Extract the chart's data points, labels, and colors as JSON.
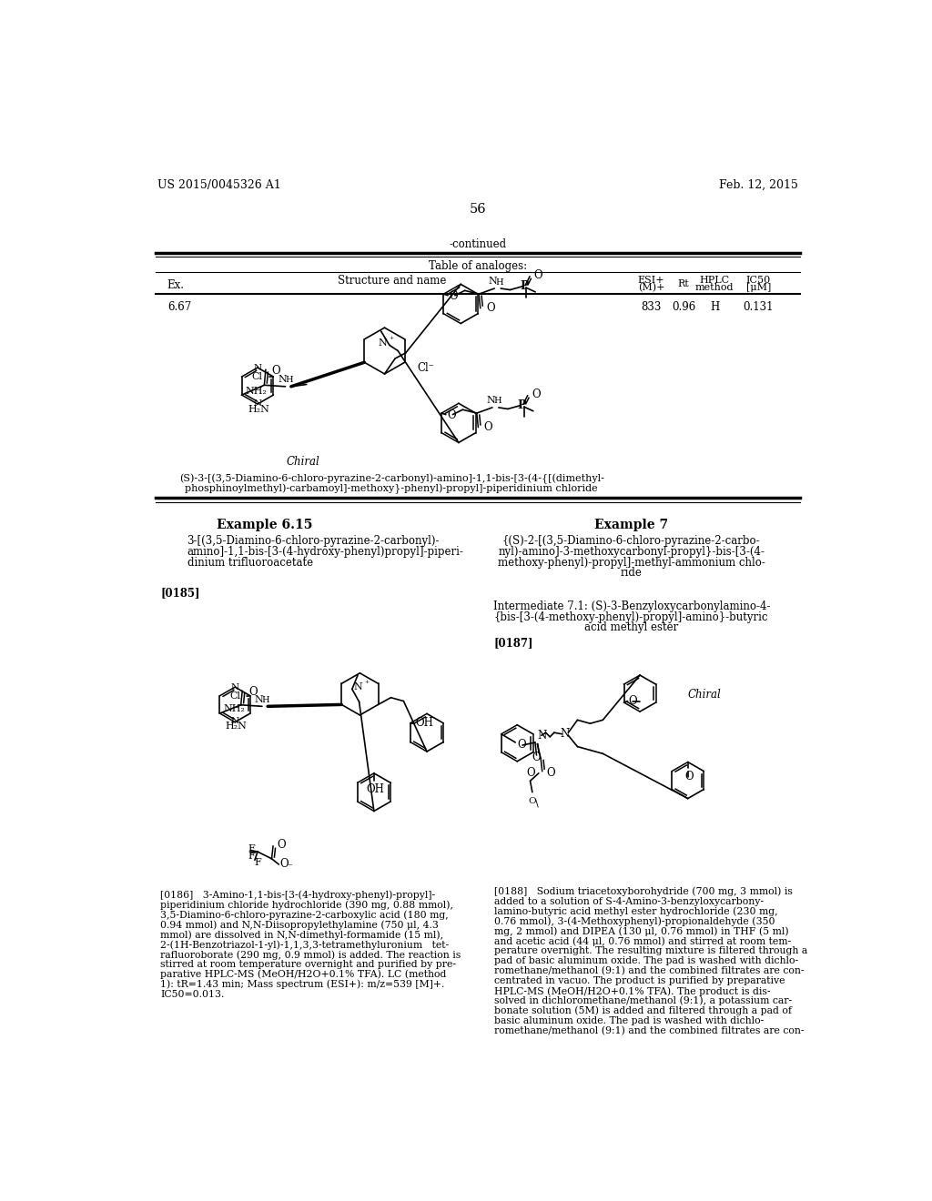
{
  "bg_color": "#ffffff",
  "header_left": "US 2015/0045326 A1",
  "header_right": "Feb. 12, 2015",
  "page_number": "56",
  "continued_text": "-continued",
  "table_title": "Table of analoges:",
  "ex_num": "6.67",
  "chiral_label": "Chiral",
  "compound_name_667_line1": "(S)-3-[(3,5-Diamino-6-chloro-pyrazine-2-carbonyl)-amino]-1,1-bis-[3-(4-{[(dimethyl-",
  "compound_name_667_line2": "phosphinoylmethyl)-carbamoyl]-methoxy}-phenyl)-propyl]-piperidinium chloride",
  "example_615_title": "Example 6.15",
  "example_615_name_lines": [
    "3-[(3,5-Diamino-6-chloro-pyrazine-2-carbonyl)-",
    "amino]-1,1-bis-[3-(4-hydroxy-phenyl)propyl]-piperi-",
    "dinium trifluoroacetate"
  ],
  "para_0185": "[0185]",
  "example7_title": "Example 7",
  "example7_name_lines": [
    "{(S)-2-[(3,5-Diamino-6-chloro-pyrazine-2-carbo-",
    "nyl)-amino]-3-methoxycarbonyl-propyl}-bis-[3-(4-",
    "methoxy-phenyl)-propyl]-methyl-ammonium chlo-",
    "ride"
  ],
  "intermediate_title_lines": [
    "Intermediate 7.1: (S)-3-Benzyloxycarbonylamino-4-",
    "{bis-[3-(4-methoxy-phenyl)-propyl]-amino}-butyric",
    "acid methyl ester"
  ],
  "para_0187": "[0187]",
  "para_0186_lines": [
    "[0186]   3-Amino-1,1-bis-[3-(4-hydroxy-phenyl)-propyl]-",
    "piperidinium chloride hydrochloride (390 mg, 0.88 mmol),",
    "3,5-Diamino-6-chloro-pyrazine-2-carboxylic acid (180 mg,",
    "0.94 mmol) and N,N-Diisopropylethylamine (750 μl, 4.3",
    "mmol) are dissolved in N,N-dimethyl-formamide (15 ml),",
    "2-(1H-Benzotriazol-1-yl)-1,1,3,3-tetramethyluronium   tet-",
    "rafluoroborate (290 mg, 0.9 mmol) is added. The reaction is",
    "stirred at room temperature overnight and purified by pre-",
    "parative HPLC-MS (MeOH/H2O+0.1% TFA). LC (method",
    "1): tR=1.43 min; Mass spectrum (ESI+): m/z=539 [M]+.",
    "IC50=0.013."
  ],
  "para_0188_lines": [
    "[0188]   Sodium triacetoxyborohydride (700 mg, 3 mmol) is",
    "added to a solution of S-4-Amino-3-benzyloxycarbony-",
    "lamino-butyric acid methyl ester hydrochloride (230 mg,",
    "0.76 mmol), 3-(4-Methoxyphenyl)-propionaldehyde (350",
    "mg, 2 mmol) and DIPEA (130 μl, 0.76 mmol) in THF (5 ml)",
    "and acetic acid (44 μl, 0.76 mmol) and stirred at room tem-",
    "perature overnight. The resulting mixture is filtered through a",
    "pad of basic aluminum oxide. The pad is washed with dichlo-",
    "romethane/methanol (9:1) and the combined filtrates are con-",
    "centrated in vacuo. The product is purified by preparative",
    "HPLC-MS (MeOH/H2O+0.1% TFA). The product is dis-",
    "solved in dichloromethane/methanol (9:1), a potassium car-",
    "bonate solution (5M) is added and filtered through a pad of",
    "basic aluminum oxide. The pad is washed with dichlo-",
    "romethane/methanol (9:1) and the combined filtrates are con-"
  ]
}
